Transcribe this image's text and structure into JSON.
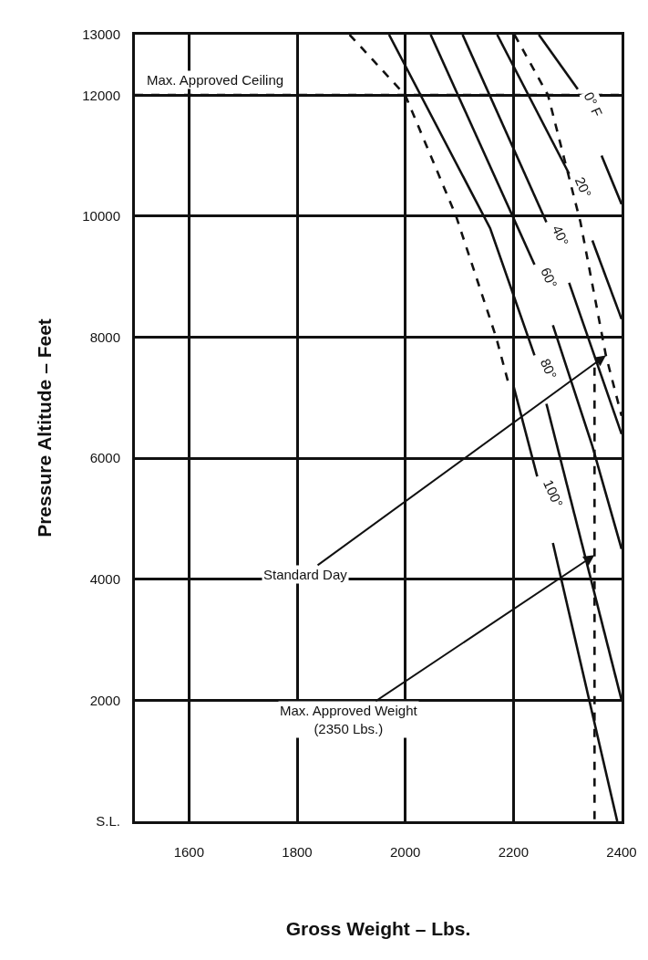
{
  "chart_data": {
    "type": "line",
    "xlabel": "Gross Weight – Lbs.",
    "ylabel": "Pressure Altitude – Feet",
    "xlim": [
      1500,
      2400
    ],
    "xticks": [
      1600,
      1800,
      2000,
      2200,
      2400
    ],
    "ylim": [
      0,
      13000
    ],
    "yticks": [
      {
        "value": 0,
        "label": "S.L."
      },
      2000,
      4000,
      6000,
      8000,
      10000,
      12000,
      13000
    ],
    "grid": true,
    "legend": false,
    "marker": "none",
    "series": [
      {
        "name": "0° F",
        "color": "#111111",
        "line_style": "solid",
        "x": [
          2247,
          2319,
          2340,
          2363,
          2400
        ],
        "values": [
          13000,
          12100,
          null,
          11000,
          10200
        ]
      },
      {
        "name": "20°",
        "color": "#111111",
        "line_style": "solid",
        "x": [
          2170,
          2303,
          2324,
          2346,
          2400
        ],
        "values": [
          13000,
          10700,
          null,
          9600,
          8300
        ]
      },
      {
        "name": "40°",
        "color": "#111111",
        "line_style": "solid",
        "x": [
          2106,
          2261,
          2282,
          2303,
          2400
        ],
        "values": [
          13000,
          9900,
          null,
          8900,
          6400
        ]
      },
      {
        "name": "60°",
        "color": "#111111",
        "line_style": "solid",
        "x": [
          2047,
          2239,
          2256,
          2273,
          2346,
          2400
        ],
        "values": [
          13000,
          9200,
          null,
          8200,
          6200,
          4500
        ]
      },
      {
        "name": "80°",
        "color": "#111111",
        "line_style": "solid",
        "x": [
          1970,
          2157,
          2239,
          2250,
          2261,
          2400
        ],
        "values": [
          13000,
          9800,
          7700,
          null,
          6900,
          2000
        ]
      },
      {
        "name": "100°",
        "color": "#111111",
        "line_style": "solid",
        "x": [
          2200,
          2244,
          2258,
          2273,
          2392
        ],
        "values": [
          7200,
          5700,
          null,
          4600,
          0
        ]
      },
      {
        "color": "#111111",
        "line_style": "dashed",
        "x": [
          1897,
          2000,
          2094,
          2168,
          2192
        ],
        "values": [
          13000,
          12000,
          10000,
          8000,
          7200
        ]
      },
      {
        "color": "#111111",
        "line_style": "dashed",
        "x": [
          2202,
          2264,
          2324,
          2371,
          2400
        ],
        "values": [
          13000,
          12000,
          9900,
          7700,
          6700
        ]
      },
      {
        "color": "#111111",
        "line_style": "dashed",
        "x": [
          2350,
          2350
        ],
        "values": [
          7500,
          0
        ]
      }
    ],
    "ref_lines": [
      {
        "axis": "y",
        "value": 12000,
        "label": "Max. Approved Ceiling",
        "color": "#111111",
        "line_style": "dashed"
      }
    ],
    "annotations": [
      {
        "text": "Standard Day",
        "x": 2371,
        "y": 7700
      },
      {
        "text": "Max. Approved Weight\n(2350 Lbs.)",
        "x": 2350,
        "y": 4400
      }
    ]
  }
}
